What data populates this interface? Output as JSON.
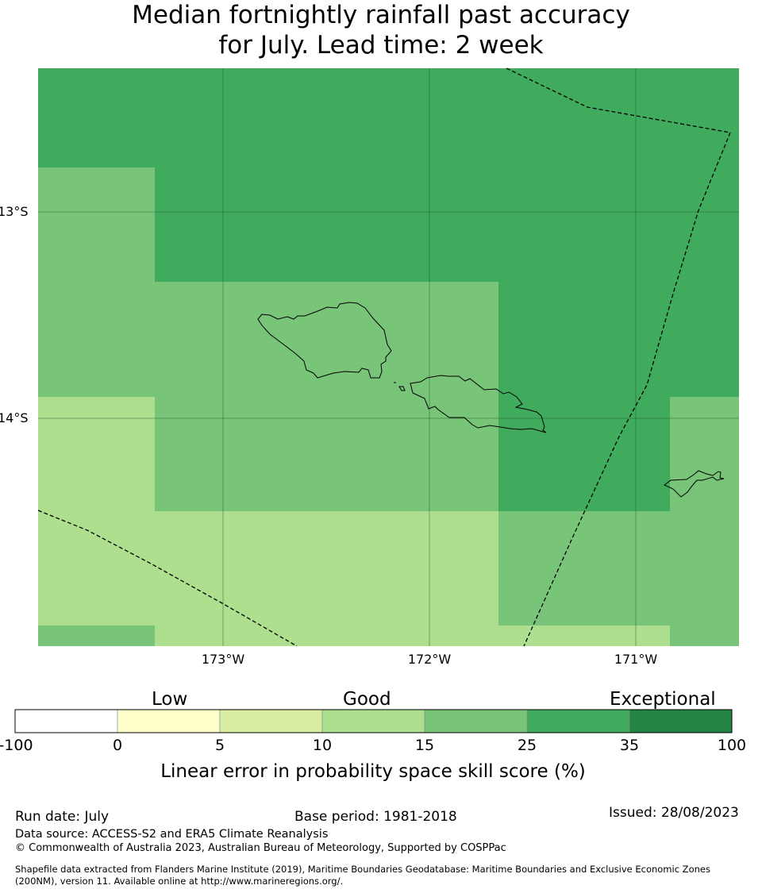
{
  "title": {
    "line1": "Median fortnightly rainfall past accuracy",
    "line2": "for July. Lead time: 2 week"
  },
  "map": {
    "lat_labels": [
      "13°S",
      "14°S"
    ],
    "lon_labels": [
      "173°W",
      "172°W",
      "171°W"
    ],
    "colors": {
      "c5_10": "#d9eda2",
      "c10_15": "#addf8e",
      "c15_25": "#78c57a",
      "c25_35": "#41ab5d",
      "c35_100": "#238443"
    }
  },
  "colorbar": {
    "categories": [
      "Low",
      "Good",
      "Exceptional"
    ],
    "ticks": [
      "-100",
      "0",
      "5",
      "10",
      "15",
      "25",
      "35",
      "100"
    ],
    "colors": [
      "#ffffff",
      "#ffffcc",
      "#d9eda2",
      "#addf8e",
      "#78c57a",
      "#41ab5d",
      "#238443"
    ],
    "label": "Linear error in probability space skill score (%)"
  },
  "footer": {
    "run_date": "Run date: July",
    "base_period": "Base period: 1981-2018",
    "issued": "Issued: 28/08/2023",
    "data_source": "Data source: ACCESS-S2 and ERA5 Climate Reanalysis",
    "copyright": "© Commonwealth of Australia 2023, Australian Bureau of Meteorology, Supported by COSPPac",
    "shapefile_line1": "Shapefile data extracted from Flanders Marine Institute (2019), Maritime Boundaries Geodatabase: Maritime Boundaries and Exclusive Economic Zones",
    "shapefile_line2": "(200NM), version 11. Available online at http://www.marineregions.org/."
  }
}
